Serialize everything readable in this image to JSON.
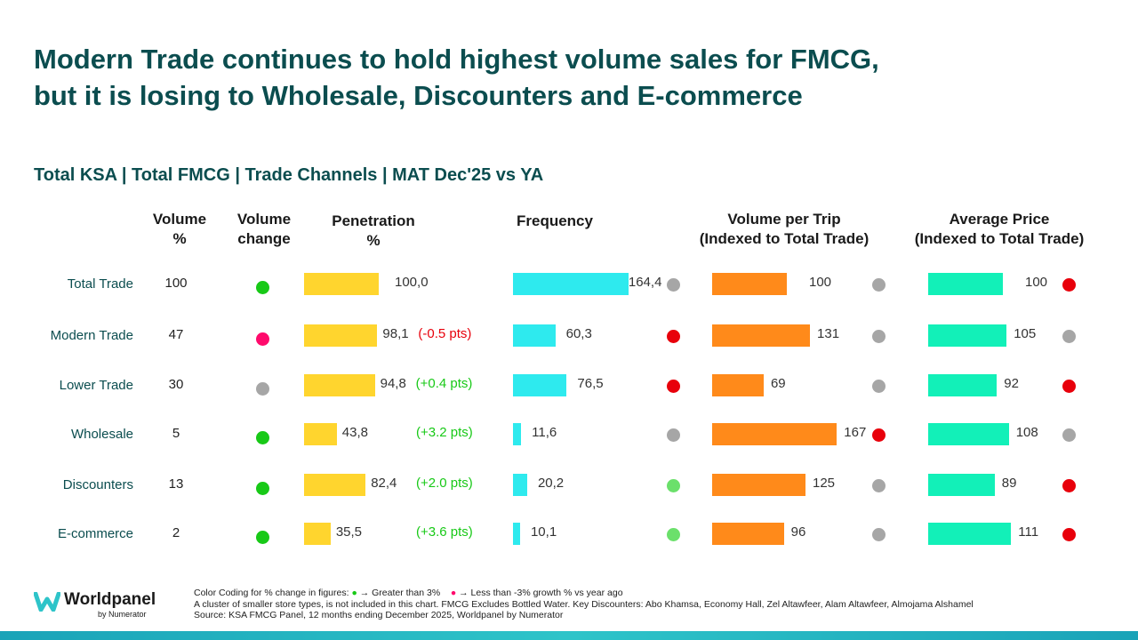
{
  "title_line1": "Modern Trade continues to hold highest volume sales for FMCG,",
  "title_line2": "but it is losing to Wholesale, Discounters and E-commerce",
  "subtitle": "Total KSA | Total FMCG | Trade Channels | MAT Dec'25 vs YA",
  "headers": {
    "volume_pct_1": "Volume",
    "volume_pct_2": "%",
    "volume_change_1": "Volume",
    "volume_change_2": "change",
    "penetration_1": "Penetration",
    "penetration_2": "%",
    "frequency": "Frequency",
    "vpt_1": "Volume per Trip",
    "vpt_2": "(Indexed to Total Trade)",
    "avgprice_1": "Average Price",
    "avgprice_2": "(Indexed to Total Trade)"
  },
  "colors": {
    "green": "#18c917",
    "pink": "#ff0a6c",
    "grey": "#a6a6a6",
    "red": "#e8000b",
    "lightgreen": "#6be06b",
    "penetration_bar": "#ffd52e",
    "frequency_bar": "#2eeaee",
    "vpt_bar": "#ff8a1a",
    "price_bar": "#12f0b8"
  },
  "chart_data": {
    "type": "table",
    "rows": [
      {
        "channel": "Total Trade",
        "volume_pct": "100",
        "volume_change": "green",
        "penetration": "100,0",
        "penetration_change": "",
        "penetration_change_color": "",
        "frequency": "164,4",
        "frequency_dot": "grey",
        "vpt": "100",
        "vpt_dot": "grey",
        "price": "100",
        "price_dot": "red"
      },
      {
        "channel": "Modern Trade",
        "volume_pct": "47",
        "volume_change": "pink",
        "penetration": "98,1",
        "penetration_change": "(-0.5 pts)",
        "penetration_change_color": "red",
        "frequency": "60,3",
        "frequency_dot": "red",
        "vpt": "131",
        "vpt_dot": "grey",
        "price": "105",
        "price_dot": "grey"
      },
      {
        "channel": "Lower Trade",
        "volume_pct": "30",
        "volume_change": "grey",
        "penetration": "94,8",
        "penetration_change": "(+0.4 pts)",
        "penetration_change_color": "green",
        "frequency": "76,5",
        "frequency_dot": "red",
        "vpt": "69",
        "vpt_dot": "grey",
        "price": "92",
        "price_dot": "red"
      },
      {
        "channel": "Wholesale",
        "volume_pct": "5",
        "volume_change": "green",
        "penetration": "43,8",
        "penetration_change": "(+3.2 pts)",
        "penetration_change_color": "green",
        "frequency": "11,6",
        "frequency_dot": "grey",
        "vpt": "167",
        "vpt_dot": "red",
        "price": "108",
        "price_dot": "grey"
      },
      {
        "channel": "Discounters",
        "volume_pct": "13",
        "volume_change": "green",
        "penetration": "82,4",
        "penetration_change": "(+2.0 pts)",
        "penetration_change_color": "green",
        "frequency": "20,2",
        "frequency_dot": "lightgreen",
        "vpt": "125",
        "vpt_dot": "grey",
        "price": "89",
        "price_dot": "red"
      },
      {
        "channel": "E-commerce",
        "volume_pct": "2",
        "volume_change": "green",
        "penetration": "35,5",
        "penetration_change": "(+3.6 pts)",
        "penetration_change_color": "green",
        "frequency": "10,1",
        "frequency_dot": "lightgreen",
        "vpt": "96",
        "vpt_dot": "grey",
        "price": "111",
        "price_dot": "red"
      }
    ]
  },
  "footer": {
    "color_coding_label": "Color Coding for % change in figures:",
    "greater_label": "→ Greater than 3%",
    "less_label": "→ Less than -3% growth % vs year ago",
    "note": "A cluster of smaller store types, is not included in this chart. FMCG Excludes Bottled Water. Key Discounters: Abo Khamsa, Economy Hall, Zel Altawfeer, Alam Altawfeer, Almojama Alshamel",
    "source": "Source: KSA FMCG Panel, 12 months ending December 2025, Worldpanel by Numerator"
  },
  "logo": {
    "name": "Worldpanel",
    "sub": "by Numerator"
  }
}
